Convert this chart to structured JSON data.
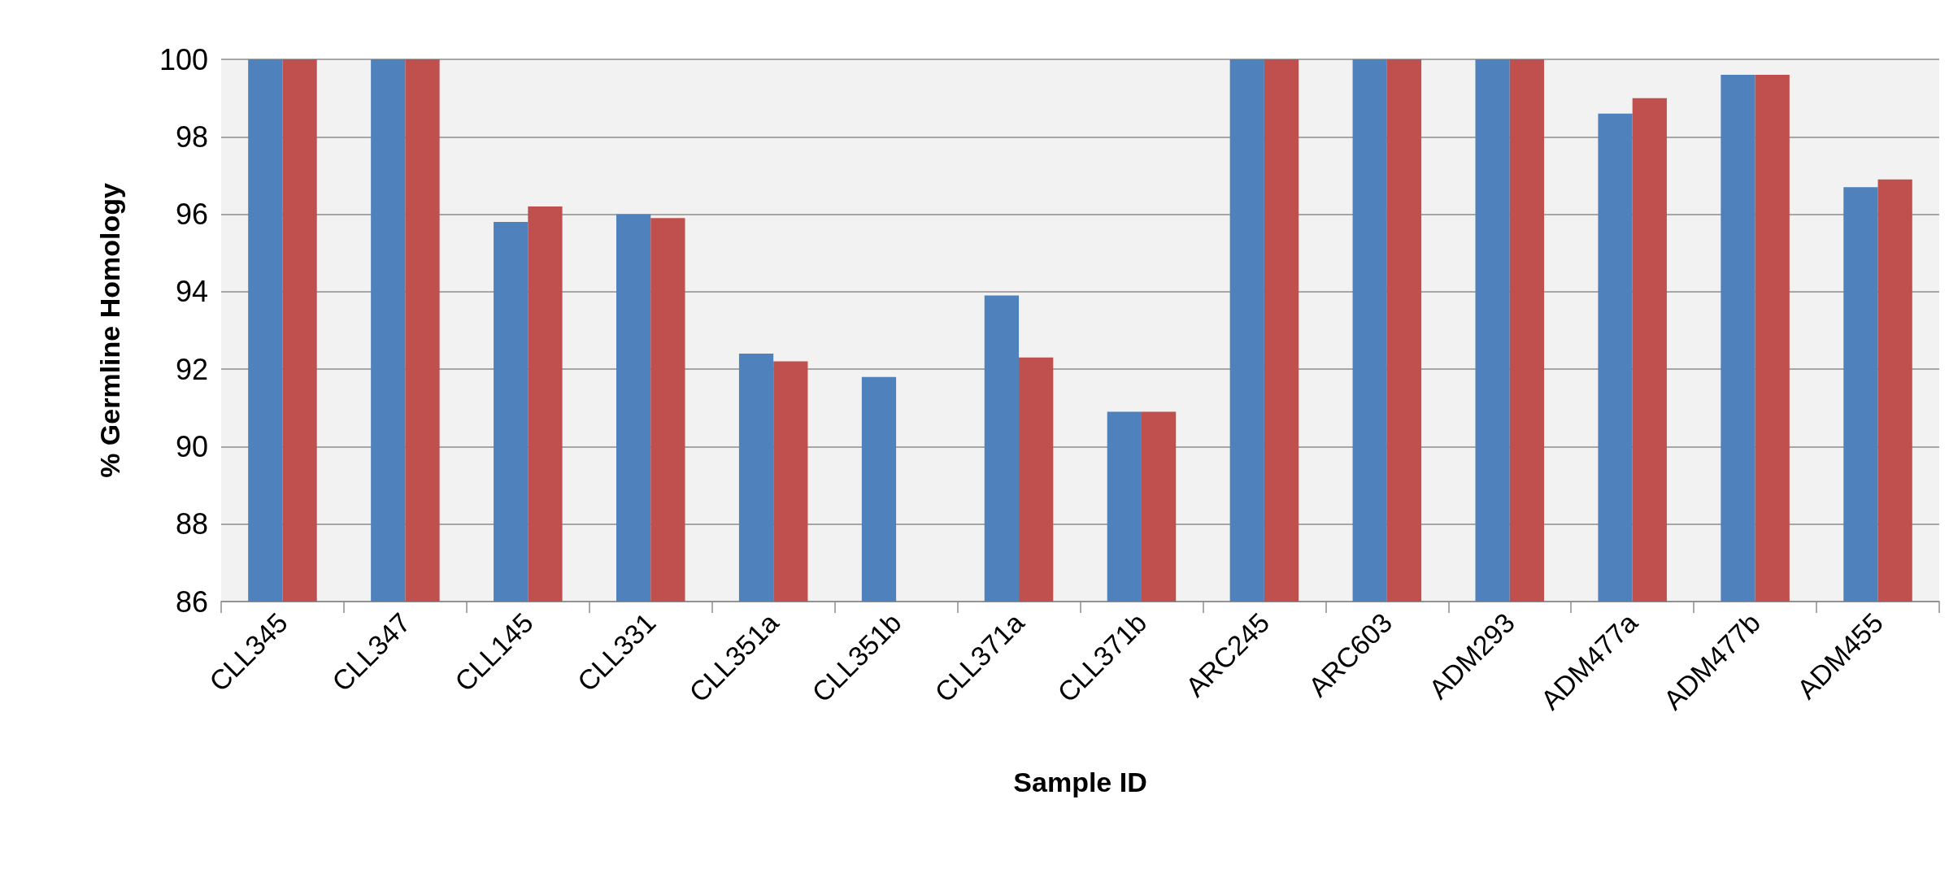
{
  "chart_data": {
    "type": "bar",
    "xlabel": "Sample ID",
    "ylabel": "% Germline Homology",
    "categories": [
      "CLL345",
      "CLL347",
      "CLL145",
      "CLL331",
      "CLL351a",
      "CLL351b",
      "CLL371a",
      "CLL371b",
      "ARC245",
      "ARC603",
      "ADM293",
      "ADM477a",
      "ADM477b",
      "ADM455"
    ],
    "series": [
      {
        "color": "#4f81bd",
        "values": [
          100,
          100,
          95.8,
          96.0,
          92.4,
          91.8,
          93.9,
          90.9,
          100,
          100,
          100,
          98.6,
          99.6,
          96.7
        ]
      },
      {
        "color": "#c0504d",
        "values": [
          100,
          100,
          96.2,
          95.9,
          92.2,
          86.0,
          92.3,
          90.9,
          100,
          100,
          100,
          99.0,
          99.6,
          96.9
        ]
      }
    ],
    "ylim": [
      86,
      100
    ],
    "yticks": [
      86,
      88,
      90,
      92,
      94,
      96,
      98,
      100
    ],
    "grid": "y"
  }
}
